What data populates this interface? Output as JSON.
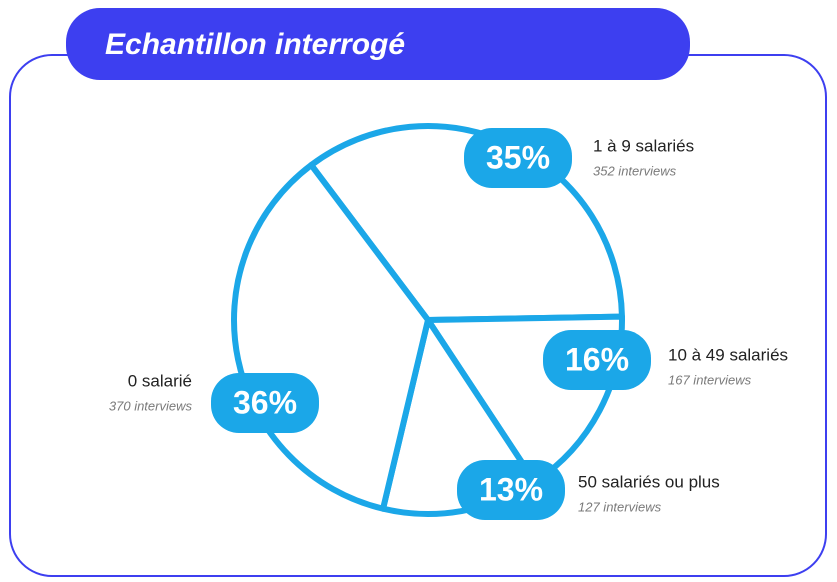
{
  "chart_data": {
    "type": "pie",
    "title": "Echantillon interrogé",
    "categories": [
      "1 à 9 salariés",
      "10 à 49 salariés",
      "50 salariés ou plus",
      "0 salarié"
    ],
    "values": [
      35,
      16,
      13,
      36
    ],
    "value_labels": [
      "35%",
      "16%",
      "13%",
      "36%"
    ],
    "annotations": [
      "352 interviews",
      "167 interviews",
      "127 interviews",
      "370 interviews"
    ],
    "color": "#1ba7e8",
    "frame_color": "#3d3ff0"
  }
}
